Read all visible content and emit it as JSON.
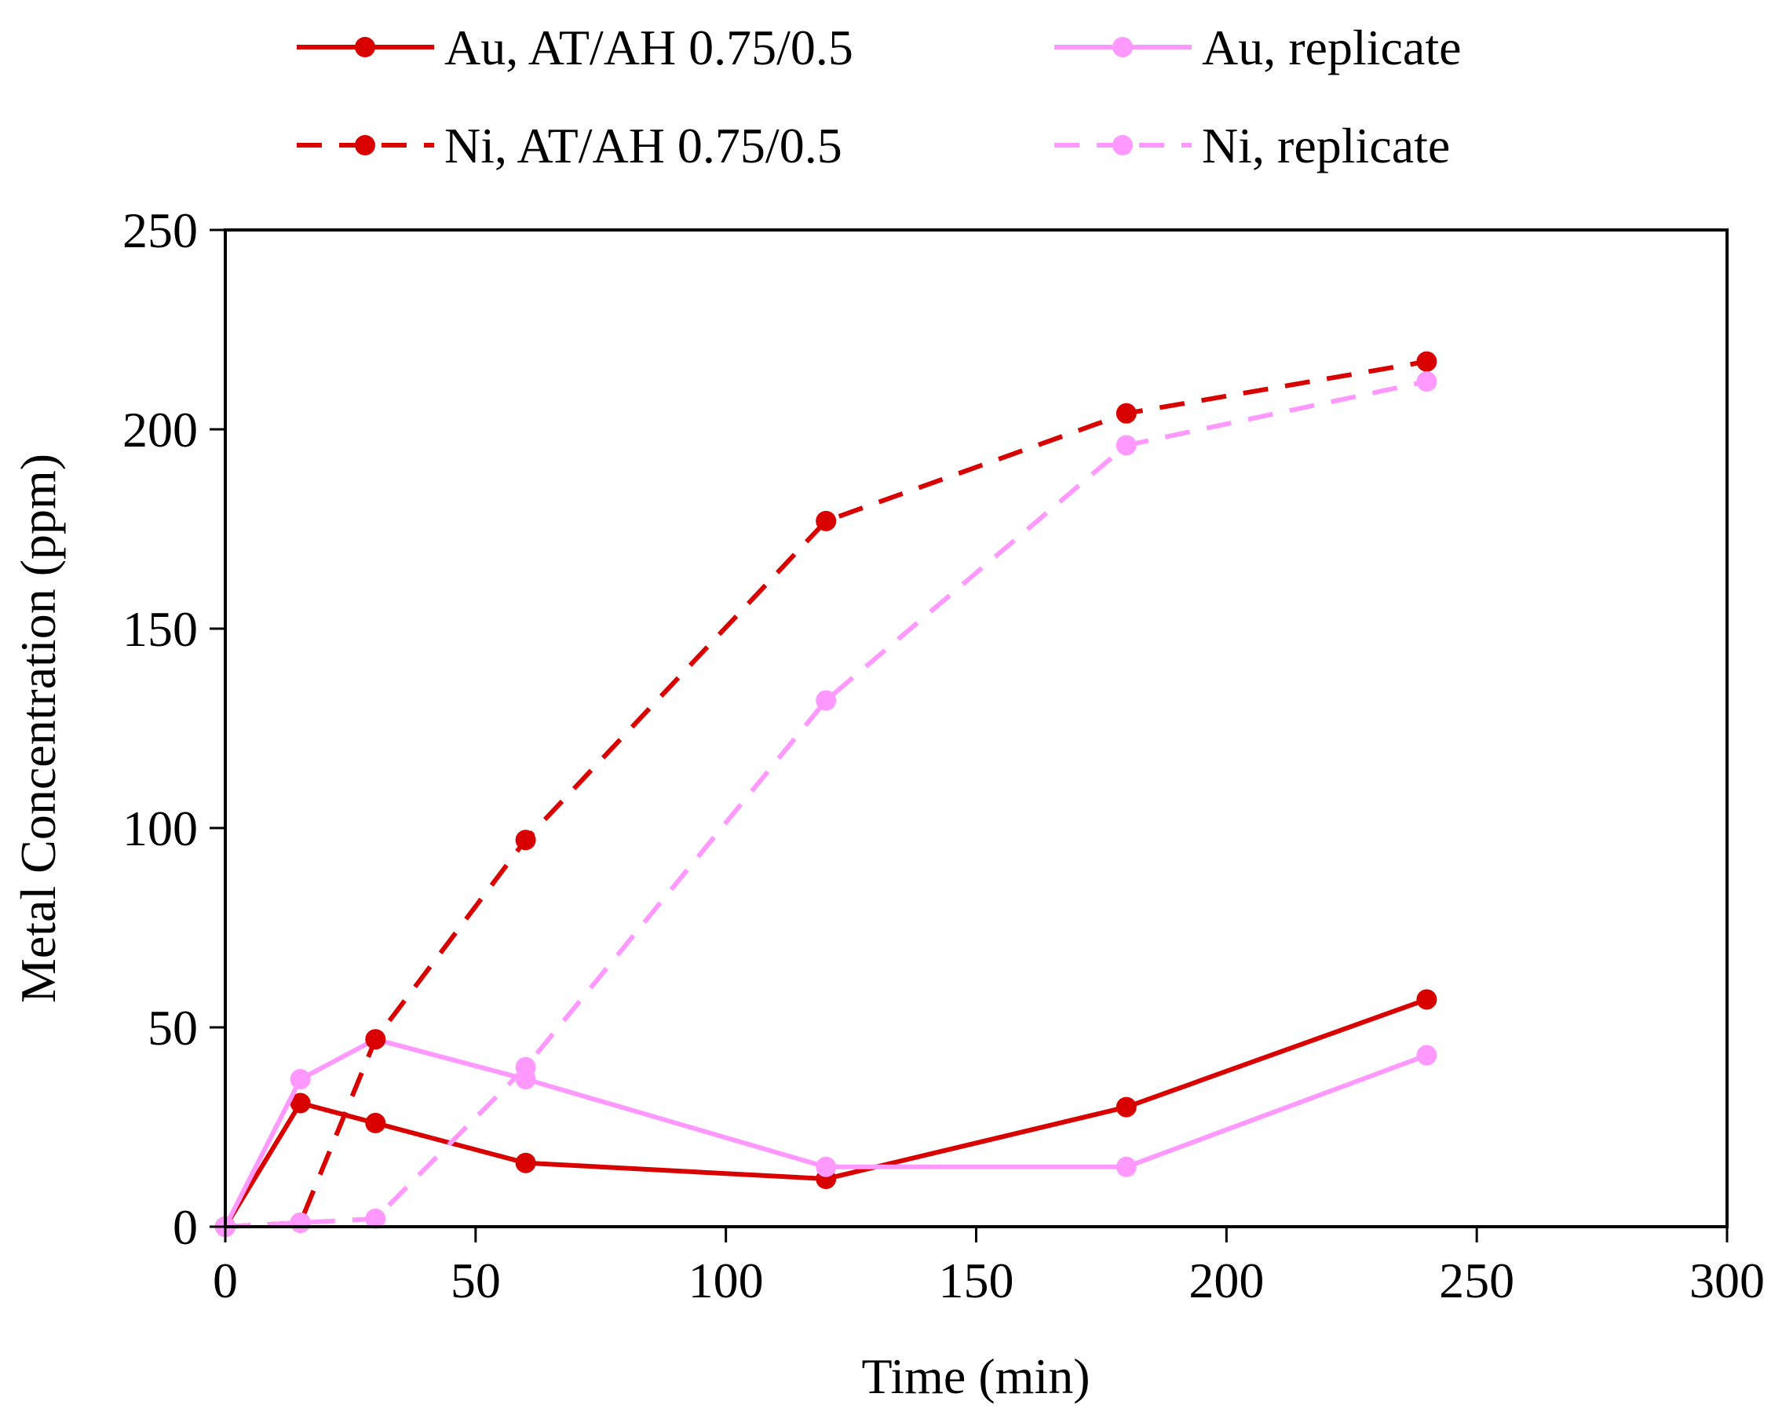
{
  "chart_data": {
    "type": "line",
    "title": "",
    "xlabel": "Time (min)",
    "ylabel": "Metal Concentration (ppm)",
    "xlim": [
      0,
      300
    ],
    "ylim": [
      0,
      250
    ],
    "xticks": [
      0,
      50,
      100,
      150,
      200,
      250,
      300
    ],
    "yticks": [
      0,
      50,
      100,
      150,
      200,
      250
    ],
    "grid": false,
    "legend_position": "top",
    "series": [
      {
        "name": "Au, AT/AH 0.75/0.5",
        "color": "#d90000",
        "line_style": "solid",
        "marker": "circle",
        "x": [
          0,
          15,
          30,
          60,
          120,
          180,
          240
        ],
        "y": [
          0,
          31,
          26,
          16,
          12,
          30,
          57
        ]
      },
      {
        "name": "Au, replicate",
        "color": "#ff99ff",
        "line_style": "solid",
        "marker": "circle",
        "x": [
          0,
          15,
          30,
          60,
          120,
          180,
          240
        ],
        "y": [
          0,
          37,
          47,
          37,
          15,
          15,
          43
        ]
      },
      {
        "name": "Ni, AT/AH 0.75/0.5",
        "color": "#d90000",
        "line_style": "dashed",
        "marker": "circle",
        "x": [
          0,
          15,
          30,
          60,
          120,
          180,
          240
        ],
        "y": [
          0,
          1,
          47,
          97,
          177,
          204,
          217
        ]
      },
      {
        "name": "Ni, replicate",
        "color": "#ff99ff",
        "line_style": "dashed",
        "marker": "circle",
        "x": [
          0,
          15,
          30,
          60,
          120,
          180,
          240
        ],
        "y": [
          0,
          1,
          2,
          40,
          132,
          196,
          212
        ]
      }
    ]
  }
}
